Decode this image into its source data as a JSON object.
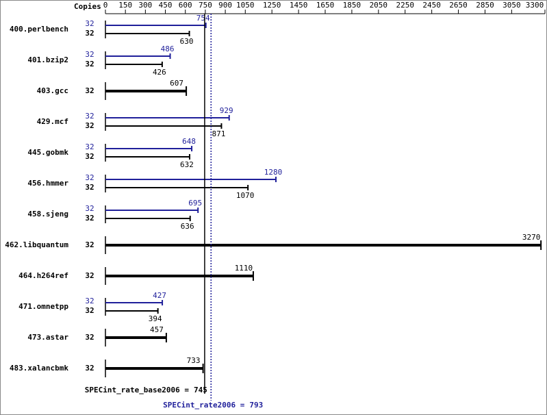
{
  "chart_data": {
    "type": "spec-bar",
    "axis_title": "Copies",
    "xlim": [
      0,
      3300
    ],
    "xticks": [
      0,
      150,
      300,
      450,
      600,
      750,
      900,
      1050,
      1250,
      1450,
      1650,
      1850,
      2050,
      2250,
      2450,
      2650,
      2850,
      3050,
      3300
    ],
    "categories": [
      "400.perlbench",
      "401.bzip2",
      "403.gcc",
      "429.mcf",
      "445.gobmk",
      "456.hmmer",
      "458.sjeng",
      "462.libquantum",
      "464.h264ref",
      "471.omnetpp",
      "473.astar",
      "483.xalancbmk"
    ],
    "base": {
      "color": "#000000",
      "copies": [
        32,
        32,
        32,
        32,
        32,
        32,
        32,
        32,
        32,
        32,
        32,
        32
      ],
      "values": [
        630,
        426,
        607,
        871,
        632,
        1070,
        636,
        3270,
        1110,
        394,
        457,
        733
      ]
    },
    "peak": {
      "color": "#1f1f9a",
      "copies": [
        32,
        32,
        null,
        32,
        32,
        32,
        32,
        null,
        null,
        32,
        null,
        null
      ],
      "values": [
        754,
        486,
        null,
        929,
        648,
        1280,
        695,
        null,
        null,
        427,
        null,
        null
      ]
    },
    "base_metric": {
      "label": "SPECint_rate_base2006 =",
      "value": 745
    },
    "peak_metric": {
      "label": "SPECint_rate2006 =",
      "value": 793
    }
  }
}
